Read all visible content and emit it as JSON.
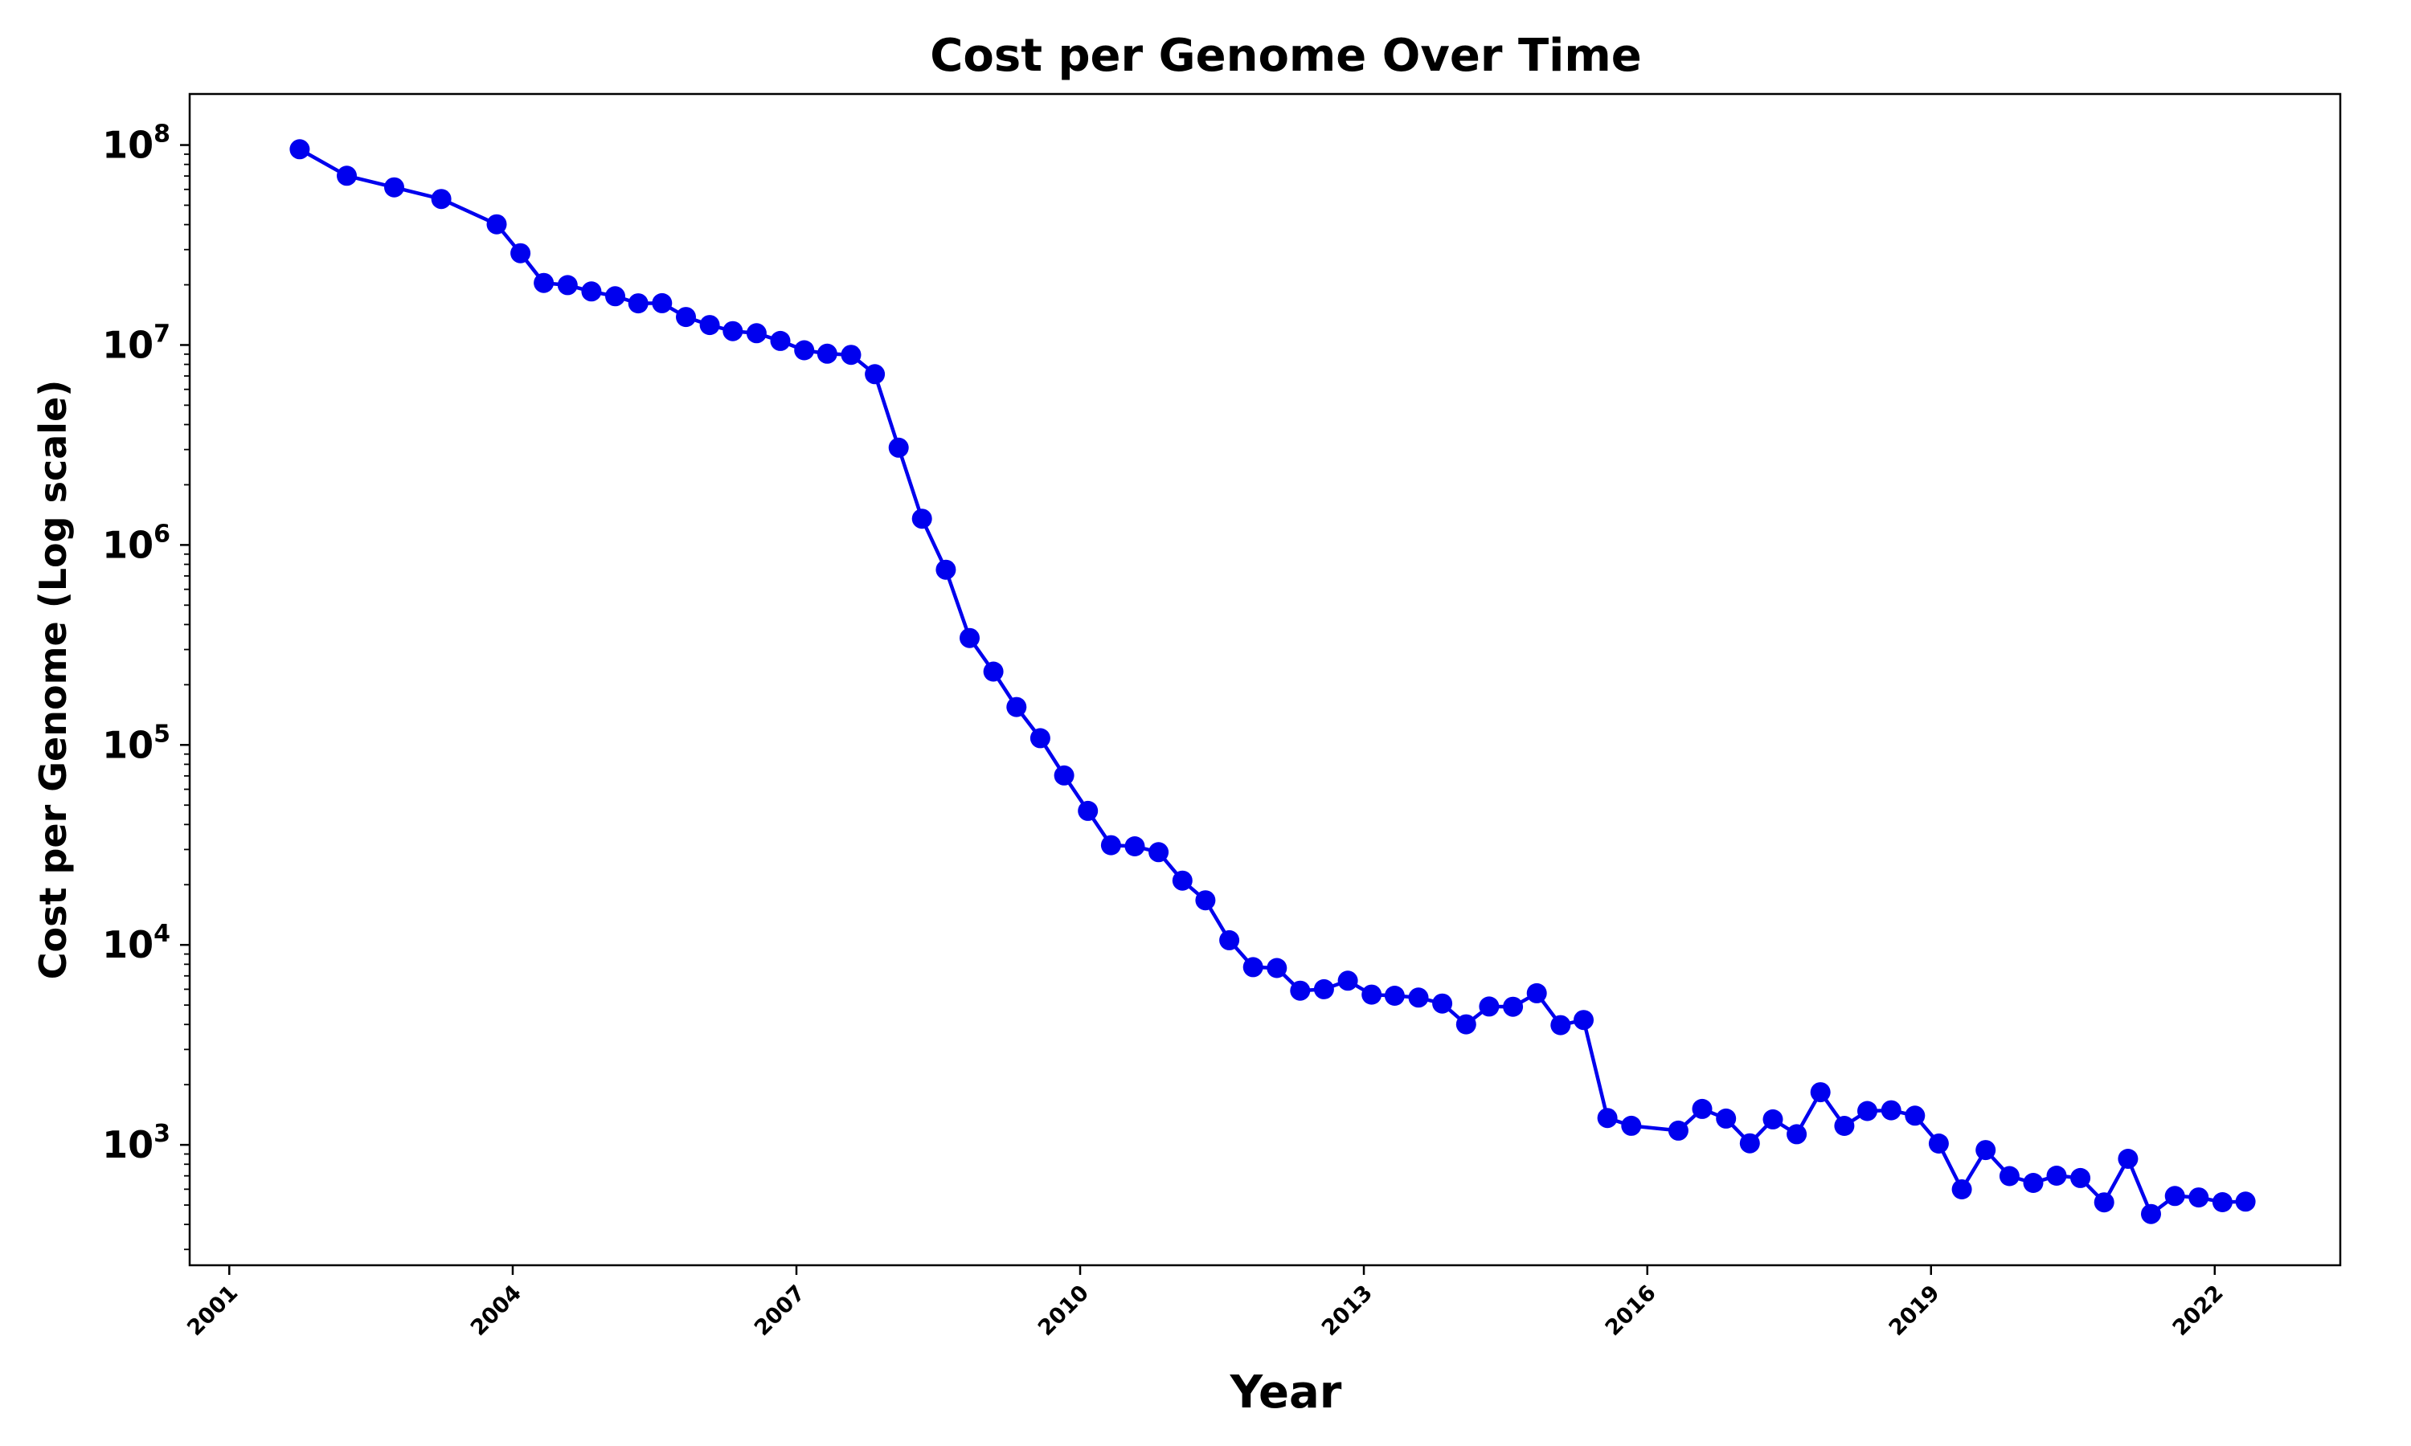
{
  "chart_data": {
    "type": "line",
    "title": "Cost per Genome Over Time",
    "xlabel": "Year",
    "ylabel": "Cost per Genome (Log scale)",
    "yscale": "log",
    "xlim": [
      "2000-08-01",
      "2023-05-01"
    ],
    "ylim": [
      250,
      180000000
    ],
    "grid": false,
    "legend": "none",
    "x_ticks": [
      "2001",
      "2004",
      "2007",
      "2010",
      "2013",
      "2016",
      "2019",
      "2022"
    ],
    "y_ticks": [
      {
        "base": "10",
        "exp": "3",
        "value": 1000
      },
      {
        "base": "10",
        "exp": "4",
        "value": 10000
      },
      {
        "base": "10",
        "exp": "5",
        "value": 100000
      },
      {
        "base": "10",
        "exp": "6",
        "value": 1000000
      },
      {
        "base": "10",
        "exp": "7",
        "value": 10000000
      },
      {
        "base": "10",
        "exp": "8",
        "value": 100000000
      }
    ],
    "series": [
      {
        "color": "#0000ee",
        "marker": "circle",
        "x": [
          "2001-09-30",
          "2002-03-31",
          "2002-09-30",
          "2003-03-31",
          "2003-10-31",
          "2004-01-31",
          "2004-04-30",
          "2004-07-31",
          "2004-10-31",
          "2005-01-31",
          "2005-04-30",
          "2005-07-31",
          "2005-10-31",
          "2006-01-31",
          "2006-04-30",
          "2006-07-31",
          "2006-10-31",
          "2007-01-31",
          "2007-04-30",
          "2007-07-31",
          "2007-10-31",
          "2008-01-31",
          "2008-04-30",
          "2008-07-31",
          "2008-10-31",
          "2009-01-31",
          "2009-04-30",
          "2009-07-31",
          "2009-10-31",
          "2010-01-31",
          "2010-04-30",
          "2010-07-31",
          "2010-10-31",
          "2011-01-31",
          "2011-04-30",
          "2011-07-31",
          "2011-10-31",
          "2012-01-31",
          "2012-04-30",
          "2012-07-31",
          "2012-10-31",
          "2013-01-31",
          "2013-04-30",
          "2013-07-31",
          "2013-10-31",
          "2014-01-31",
          "2014-04-30",
          "2014-07-31",
          "2014-10-31",
          "2015-01-31",
          "2015-04-30",
          "2015-07-31",
          "2015-10-31",
          "2016-04-30",
          "2016-07-31",
          "2016-10-31",
          "2017-01-31",
          "2017-04-30",
          "2017-07-31",
          "2017-10-31",
          "2018-01-31",
          "2018-04-30",
          "2018-07-31",
          "2018-10-31",
          "2019-01-31",
          "2019-04-30",
          "2019-07-31",
          "2019-10-31",
          "2020-01-31",
          "2020-04-30",
          "2020-07-31",
          "2020-10-31",
          "2021-01-31",
          "2021-04-30",
          "2021-07-31",
          "2021-10-31",
          "2022-01-31",
          "2022-04-30"
        ],
        "y": [
          95263072,
          70175437,
          61448422,
          53751684,
          40157877,
          28780376,
          20442576,
          19934346,
          18519312,
          17534275,
          16159922,
          16180338,
          13801124,
          12585110,
          11732535,
          11455315,
          10474886,
          9408739,
          9047017,
          8927847,
          7147571,
          3063820,
          1352982,
          752080,
          342502,
          232735,
          154714,
          108065,
          70333,
          46774,
          31512,
          31125,
          29092,
          20963,
          16712,
          10557,
          7743,
          7666,
          5902,
          6004,
          6618,
          5639,
          5567,
          5451,
          5089,
          4008,
          4920,
          4905,
          5731,
          3970,
          4211,
          1363,
          1245,
          1178,
          1512,
          1354,
          1018,
          1341,
          1130,
          1833,
          1244,
          1477,
          1489,
          1399,
          1015,
          599,
          942,
          698,
          645,
          701,
          683,
          516,
          852,
          451,
          555,
          546,
          517,
          520
        ]
      }
    ]
  }
}
